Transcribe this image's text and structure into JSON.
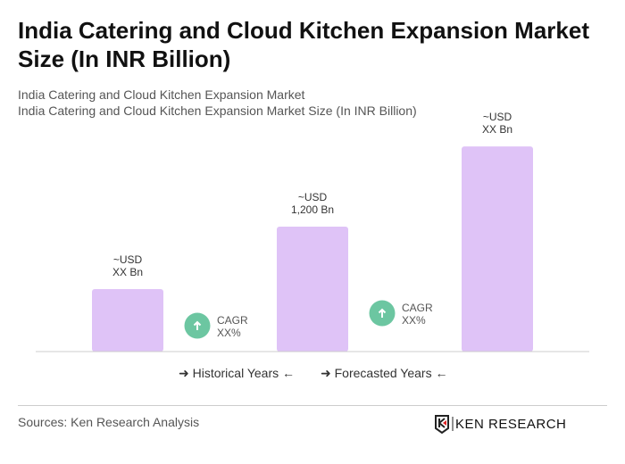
{
  "title": "India Catering and Cloud Kitchen Expansion Market Size (In INR Billion)",
  "subtitle1": "India Catering and Cloud Kitchen Expansion Market",
  "subtitle2": "India Catering and Cloud Kitchen Expansion Market Size (In INR Billion)",
  "chart_data": {
    "type": "bar",
    "categories": [
      "",
      "",
      ""
    ],
    "values": [
      600,
      1200,
      1970
    ],
    "data_labels": [
      [
        "~USD",
        "XX Bn"
      ],
      [
        "~USD",
        "1,200 Bn"
      ],
      [
        "~USD",
        "XX Bn"
      ]
    ],
    "cagr": [
      [
        "CAGR",
        "XX%"
      ],
      [
        "CAGR",
        "XX%"
      ]
    ],
    "bar_color": "#dfc3f7",
    "cagr_color": "#6cc6a1",
    "grid": false
  },
  "legend": {
    "historical": "Historical Years",
    "forecasted": "Forecasted Years"
  },
  "source": "Sources: Ken Research Analysis",
  "logo_text": "KEN RESEARCH"
}
